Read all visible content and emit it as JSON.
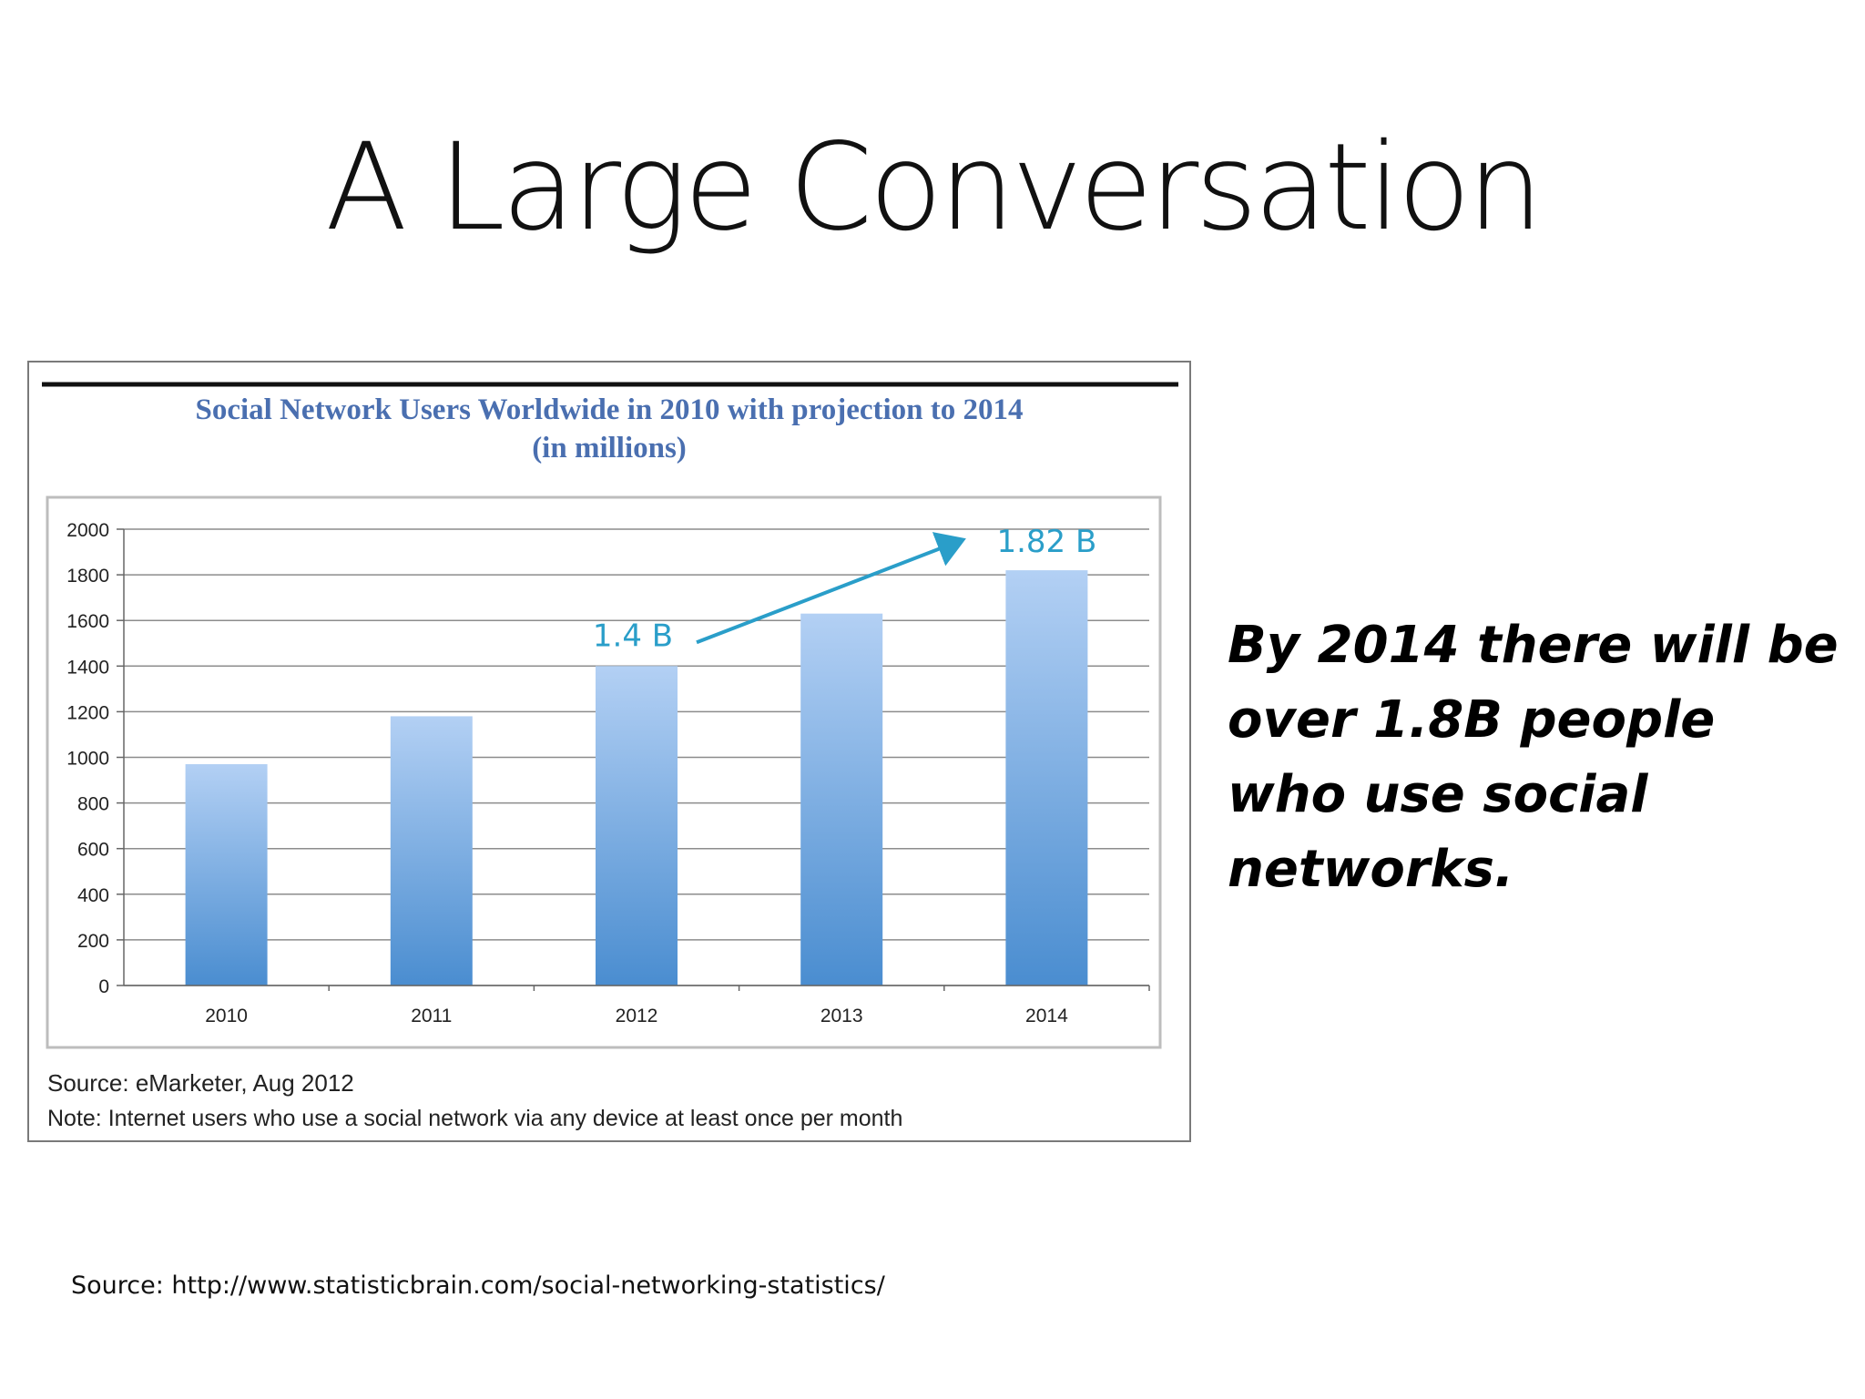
{
  "slide": {
    "title": "A Large Conversation",
    "callout": "By 2014 there will be over 1.8B people who use social networks.",
    "source": "Source: http://www.statisticbrain.com/social-networking-statistics/"
  },
  "chart_data": {
    "type": "bar",
    "title_line1": "Social Network Users Worldwide in 2010 with projection to 2014",
    "title_line2": "(in millions)",
    "categories": [
      "2010",
      "2011",
      "2012",
      "2013",
      "2014"
    ],
    "values": [
      970,
      1180,
      1400,
      1630,
      1820
    ],
    "ylim": [
      0,
      2000
    ],
    "yticks": [
      0,
      200,
      400,
      600,
      800,
      1000,
      1200,
      1400,
      1600,
      1800,
      2000
    ],
    "grid": true,
    "annotations": [
      {
        "text": "1.4 B",
        "category": "2012"
      },
      {
        "text": "1.82 B",
        "category": "2014"
      }
    ],
    "source_note": "Source: eMarketer, Aug 2012",
    "note": "Note: Internet users who use a social network via any device at least once per month",
    "colors": {
      "bar_top": "#b3d0f4",
      "bar_bottom": "#4a8dd0",
      "title": "#4a6fb0",
      "annotation": "#2a9ec9"
    }
  }
}
